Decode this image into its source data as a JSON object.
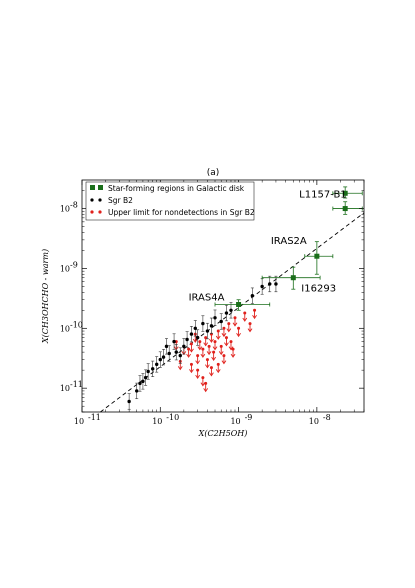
{
  "chart_data": {
    "type": "scatter",
    "panel_label": "(a)",
    "xlabel": "X(C2H5OH)",
    "ylabel": "X(CH3OHCHO - warm)",
    "xscale": "log",
    "yscale": "log",
    "xlim": [
      1e-11,
      4e-08
    ],
    "ylim": [
      4e-12,
      3e-08
    ],
    "x_ticks": [
      {
        "value": 1e-11,
        "label": "10"
      },
      {
        "value": 1e-10,
        "label": "10"
      },
      {
        "value": 1e-09,
        "label": "10"
      },
      {
        "value": 1e-08,
        "label": "10"
      }
    ],
    "x_tick_exponents": [
      "-11",
      "-10",
      "-9",
      "-8"
    ],
    "y_ticks": [
      {
        "value": 1e-11,
        "label": "10"
      },
      {
        "value": 1e-10,
        "label": "10"
      },
      {
        "value": 1e-09,
        "label": "10"
      },
      {
        "value": 1e-08,
        "label": "10"
      }
    ],
    "y_tick_exponents": [
      "-11",
      "-10",
      "-9",
      "-8"
    ],
    "grid": false,
    "legend_position": "top-left",
    "legend": [
      {
        "label": "Star-forming regions in Galactic disk",
        "color": "#1a6e1a",
        "marker": "square"
      },
      {
        "label": "Sgr B2",
        "color": "#000000",
        "marker": "dot"
      },
      {
        "label": "Upper limit for nondetections in Sgr B2",
        "color": "#e0201b",
        "marker": "dot"
      }
    ],
    "fit_line": {
      "style": "dashed",
      "color": "#000000",
      "points": [
        [
          1.5e-11,
          3.5e-12
        ],
        [
          4e-08,
          8.5e-09
        ]
      ]
    },
    "series": [
      {
        "name": "Star-forming regions in Galactic disk",
        "color": "#1a6e1a",
        "points": [
          {
            "x": 2.3e-08,
            "y": 1.8e-08,
            "xerr": [
              7e-09,
              1.5e-08
            ],
            "yerr": [
              3e-09,
              5e-09
            ]
          },
          {
            "x": 2.3e-08,
            "y": 1e-08,
            "xerr": [
              7e-09,
              1.5e-08
            ],
            "yerr": [
              2e-09,
              3e-09
            ]
          },
          {
            "x": 1e-08,
            "y": 1.6e-09,
            "xerr": [
              3e-09,
              6e-09
            ],
            "yerr": [
              8e-10,
              1.2e-09
            ]
          },
          {
            "x": 5e-09,
            "y": 7e-10,
            "xerr": [
              3e-09,
              6e-09
            ],
            "yerr": [
              2.5e-10,
              3.5e-10
            ]
          },
          {
            "x": 1e-09,
            "y": 2.5e-10,
            "xerr": [
              5e-10,
              1.5e-09
            ],
            "yerr": [
              5e-11,
              5e-11
            ]
          }
        ],
        "labels": [
          {
            "text": "L1157-B1",
            "x": 2.3e-08,
            "y": 1.8e-08
          },
          {
            "text": "IRAS2A",
            "x": 1e-08,
            "y": 1.6e-09
          },
          {
            "text": "I16293",
            "x": 5e-09,
            "y": 7e-10
          },
          {
            "text": "IRAS4A",
            "x": 1e-09,
            "y": 2.5e-10
          }
        ]
      },
      {
        "name": "Sgr B2",
        "color": "#000000",
        "points": [
          {
            "x": 4e-11,
            "y": 6e-12
          },
          {
            "x": 5e-11,
            "y": 9e-12
          },
          {
            "x": 5.5e-11,
            "y": 1.2e-11
          },
          {
            "x": 6e-11,
            "y": 1.3e-11
          },
          {
            "x": 6.5e-11,
            "y": 1.5e-11
          },
          {
            "x": 7e-11,
            "y": 1.9e-11
          },
          {
            "x": 8e-11,
            "y": 2.1e-11
          },
          {
            "x": 9e-11,
            "y": 2.5e-11
          },
          {
            "x": 1e-10,
            "y": 3e-11
          },
          {
            "x": 1.1e-10,
            "y": 3.3e-11
          },
          {
            "x": 1.2e-10,
            "y": 5e-11
          },
          {
            "x": 1.3e-10,
            "y": 3.8e-11
          },
          {
            "x": 1.5e-10,
            "y": 6e-11
          },
          {
            "x": 1.6e-10,
            "y": 4e-11
          },
          {
            "x": 1.8e-10,
            "y": 3.5e-11
          },
          {
            "x": 2e-10,
            "y": 5e-11
          },
          {
            "x": 2.2e-10,
            "y": 6.5e-11
          },
          {
            "x": 2.5e-10,
            "y": 8e-11
          },
          {
            "x": 2.8e-10,
            "y": 1e-10
          },
          {
            "x": 3e-10,
            "y": 7e-11
          },
          {
            "x": 3.5e-10,
            "y": 1.2e-10
          },
          {
            "x": 4e-10,
            "y": 9e-11
          },
          {
            "x": 4.5e-10,
            "y": 1.1e-10
          },
          {
            "x": 5e-10,
            "y": 1.5e-10
          },
          {
            "x": 6e-10,
            "y": 1.3e-10
          },
          {
            "x": 7e-10,
            "y": 1.8e-10
          },
          {
            "x": 8e-10,
            "y": 2e-10
          },
          {
            "x": 1.5e-09,
            "y": 3.5e-10
          },
          {
            "x": 2e-09,
            "y": 5e-10
          },
          {
            "x": 2.5e-09,
            "y": 5.5e-10
          },
          {
            "x": 3e-09,
            "y": 5.5e-10
          }
        ]
      },
      {
        "name": "Upper limit for nondetections in Sgr B2",
        "color": "#e0201b",
        "upper_limit": true,
        "points": [
          {
            "x": 1.6e-10,
            "y": 6e-11
          },
          {
            "x": 2e-10,
            "y": 5e-11
          },
          {
            "x": 2.3e-10,
            "y": 4.5e-11
          },
          {
            "x": 2.5e-10,
            "y": 5.5e-11
          },
          {
            "x": 2.8e-10,
            "y": 8e-11
          },
          {
            "x": 3e-10,
            "y": 3.5e-11
          },
          {
            "x": 3.2e-10,
            "y": 6e-11
          },
          {
            "x": 3.5e-10,
            "y": 4.5e-11
          },
          {
            "x": 3.8e-10,
            "y": 7e-11
          },
          {
            "x": 4e-10,
            "y": 3e-11
          },
          {
            "x": 4.2e-10,
            "y": 5e-11
          },
          {
            "x": 4.5e-10,
            "y": 8e-11
          },
          {
            "x": 4.8e-10,
            "y": 4e-11
          },
          {
            "x": 5e-10,
            "y": 6e-11
          },
          {
            "x": 5.5e-10,
            "y": 9e-11
          },
          {
            "x": 6e-10,
            "y": 5e-11
          },
          {
            "x": 6.5e-10,
            "y": 1e-10
          },
          {
            "x": 7e-10,
            "y": 7e-11
          },
          {
            "x": 7.5e-10,
            "y": 1.2e-10
          },
          {
            "x": 8e-10,
            "y": 6e-11
          },
          {
            "x": 9e-10,
            "y": 1.5e-10
          },
          {
            "x": 1e-09,
            "y": 1e-10
          },
          {
            "x": 1.2e-09,
            "y": 1.8e-10
          },
          {
            "x": 1.4e-09,
            "y": 1.2e-10
          },
          {
            "x": 1.6e-09,
            "y": 2e-10
          },
          {
            "x": 2.5e-10,
            "y": 2.5e-11
          },
          {
            "x": 3e-10,
            "y": 2e-11
          },
          {
            "x": 3.5e-10,
            "y": 1.5e-11
          },
          {
            "x": 5.5e-10,
            "y": 2.5e-11
          },
          {
            "x": 3.8e-10,
            "y": 1.2e-11
          },
          {
            "x": 4.5e-10,
            "y": 2.2e-11
          },
          {
            "x": 6.5e-10,
            "y": 3.5e-11
          },
          {
            "x": 1.8e-10,
            "y": 2.8e-11
          },
          {
            "x": 8.5e-10,
            "y": 4.5e-11
          }
        ]
      }
    ]
  }
}
